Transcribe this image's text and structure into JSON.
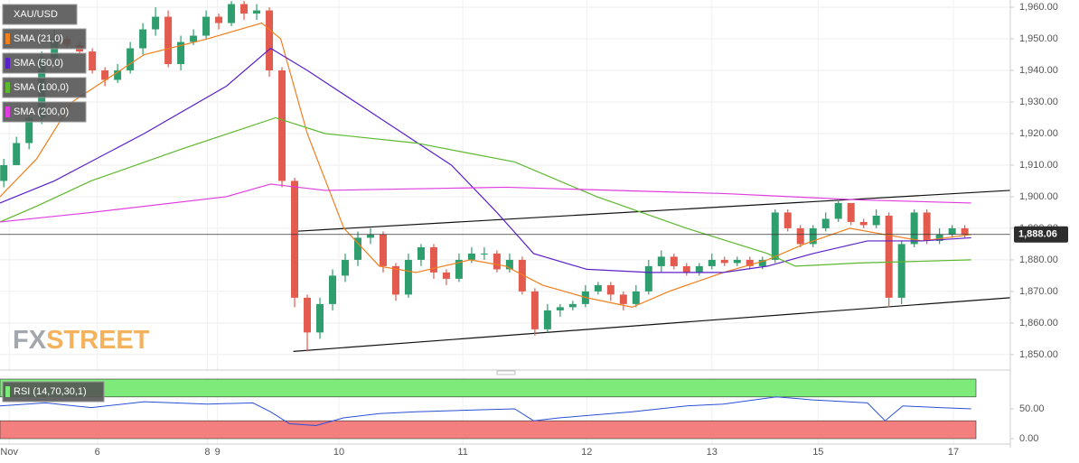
{
  "chart_data": {
    "type": "candlestick",
    "symbol": "XAU/USD",
    "up_color": "#2f9e6e",
    "down_color": "#e35b4f",
    "x": [
      0,
      1,
      2,
      3,
      4,
      5,
      6,
      7,
      8,
      9,
      10,
      11,
      12,
      13,
      14,
      15,
      16,
      17,
      18,
      19,
      20,
      21,
      22,
      23,
      24,
      25,
      26,
      27,
      28,
      29,
      30,
      31,
      32,
      33,
      34,
      35,
      36,
      37,
      38,
      39,
      40,
      41,
      42,
      43,
      44,
      45,
      46,
      47,
      48,
      49,
      50,
      51,
      52,
      53,
      54,
      55,
      56,
      57,
      58,
      59,
      60,
      61,
      62,
      63,
      64,
      65,
      66,
      67,
      68,
      69,
      70,
      71,
      72,
      73,
      74,
      75,
      76
    ],
    "open": [
      1905,
      1910,
      1917,
      1925,
      1944,
      1950,
      1948,
      1946,
      1940,
      1937,
      1940,
      1947,
      1953,
      1957,
      1942,
      1949,
      1951,
      1957,
      1955,
      1961,
      1958,
      1959,
      1940,
      1905,
      1868,
      1857,
      1866,
      1875,
      1880,
      1887,
      1888,
      1878,
      1869,
      1880,
      1884,
      1876,
      1874,
      1880,
      1882,
      1882,
      1877,
      1880,
      1870,
      1858,
      1864,
      1865,
      1866,
      1870,
      1872,
      1869,
      1866,
      1870,
      1878,
      1881,
      1878,
      1876,
      1878,
      1880,
      1879,
      1880,
      1878,
      1880,
      1895,
      1890,
      1885,
      1890,
      1893,
      1898,
      1892,
      1891,
      1894,
      1868,
      1885,
      1895,
      1886,
      1888,
      1890
    ],
    "high": [
      1912,
      1919,
      1927,
      1946,
      1953,
      1951,
      1949,
      1947,
      1941,
      1942,
      1949,
      1955,
      1960,
      1959,
      1951,
      1953,
      1959,
      1958,
      1962,
      1962,
      1961,
      1960,
      1941,
      1906,
      1869,
      1868,
      1877,
      1882,
      1889,
      1890,
      1889,
      1879,
      1882,
      1885,
      1885,
      1877,
      1882,
      1884,
      1884,
      1883,
      1882,
      1881,
      1871,
      1866,
      1866,
      1867,
      1872,
      1873,
      1873,
      1870,
      1872,
      1880,
      1883,
      1882,
      1879,
      1879,
      1882,
      1881,
      1881,
      1881,
      1881,
      1896,
      1896,
      1891,
      1891,
      1895,
      1899,
      1898,
      1893,
      1896,
      1895,
      1886,
      1896,
      1896,
      1890,
      1891,
      1891
    ],
    "low": [
      1903,
      1910,
      1915,
      1923,
      1942,
      1947,
      1945,
      1939,
      1935,
      1936,
      1939,
      1945,
      1951,
      1941,
      1940,
      1948,
      1950,
      1953,
      1954,
      1956,
      1956,
      1938,
      1903,
      1865,
      1851,
      1855,
      1864,
      1873,
      1878,
      1885,
      1876,
      1867,
      1868,
      1878,
      1874,
      1872,
      1873,
      1879,
      1880,
      1876,
      1876,
      1869,
      1856,
      1857,
      1862,
      1864,
      1865,
      1869,
      1867,
      1864,
      1865,
      1869,
      1876,
      1877,
      1875,
      1875,
      1877,
      1878,
      1878,
      1877,
      1877,
      1879,
      1889,
      1884,
      1884,
      1889,
      1892,
      1891,
      1890,
      1890,
      1865,
      1866,
      1884,
      1885,
      1885,
      1887,
      1887
    ],
    "close": [
      1910,
      1917,
      1925,
      1944,
      1950,
      1948,
      1946,
      1940,
      1937,
      1940,
      1947,
      1953,
      1957,
      1942,
      1949,
      1951,
      1957,
      1955,
      1961,
      1958,
      1959,
      1940,
      1905,
      1868,
      1857,
      1866,
      1875,
      1880,
      1887,
      1888,
      1878,
      1869,
      1880,
      1884,
      1876,
      1874,
      1880,
      1882,
      1882,
      1877,
      1880,
      1870,
      1858,
      1864,
      1865,
      1866,
      1870,
      1872,
      1869,
      1866,
      1870,
      1878,
      1881,
      1878,
      1876,
      1878,
      1880,
      1879,
      1880,
      1878,
      1880,
      1895,
      1890,
      1885,
      1890,
      1893,
      1898,
      1892,
      1891,
      1894,
      1868,
      1885,
      1895,
      1886,
      1888,
      1890,
      1888.06
    ],
    "series": [
      {
        "name": "SMA (21,0)",
        "color": "#f07f1e",
        "x": [
          -0.3,
          2.6,
          5.4,
          11.1,
          16.1,
          20.4,
          21.9,
          24,
          26.9,
          29.7,
          32.6,
          36.9,
          39.7,
          42.6,
          46.1,
          49.7,
          52.6,
          56.9,
          60.4,
          63.3,
          66.9,
          69.7,
          72.6,
          76.5
        ],
        "values": [
          1900,
          1912,
          1930,
          1945,
          1950,
          1955,
          1950,
          1920,
          1890,
          1878,
          1876,
          1880,
          1878,
          1872,
          1868,
          1865,
          1870,
          1876,
          1880,
          1885,
          1890,
          1888,
          1886,
          1888
        ]
      },
      {
        "name": "SMA (50,0)",
        "color": "#5b21c9",
        "x": [
          -0.3,
          4,
          11.1,
          17.6,
          21.1,
          24,
          29.7,
          35.4,
          39,
          41.9,
          46.1,
          51.1,
          56.9,
          60.4,
          64,
          68.3,
          72.6,
          76.5
        ],
        "values": [
          1898,
          1905,
          1920,
          1935,
          1947,
          1940,
          1925,
          1910,
          1895,
          1882,
          1877,
          1876,
          1876,
          1878,
          1882,
          1886,
          1886,
          1887
        ]
      },
      {
        "name": "SMA (100,0)",
        "color": "#5cb82e",
        "x": [
          -0.3,
          2.6,
          6.9,
          14,
          21.5,
          25.4,
          32.6,
          40.4,
          46.9,
          54,
          60.4,
          62.6,
          67.6,
          76.5
        ],
        "values": [
          1892,
          1897,
          1905,
          1915,
          1925,
          1920,
          1917,
          1911,
          1900,
          1890,
          1882,
          1878,
          1879,
          1880
        ]
      },
      {
        "name": "SMA (200,0)",
        "color": "#e03ce0",
        "x": [
          -0.3,
          6.9,
          17.6,
          21.1,
          25.4,
          39.7,
          56.9,
          67.6,
          76.5
        ],
        "values": [
          1892,
          1895,
          1900,
          1904,
          1902,
          1903,
          1901,
          1899,
          1898
        ]
      }
    ],
    "trendlines": [
      {
        "x": [
          22.9,
          79.6
        ],
        "values": [
          1889,
          1902
        ]
      },
      {
        "x": [
          22.9,
          79.6
        ],
        "values": [
          1851,
          1868
        ]
      }
    ],
    "last": 1888.06,
    "last_label": "1,888.06",
    "xlim": [
      -0.3,
      79.6
    ],
    "ylim": [
      1845.1,
      1962.3
    ],
    "xticks": [
      {
        "value": 0.43,
        "label": "Nov"
      },
      {
        "value": 7.4,
        "label": "6"
      },
      {
        "value": 16.1,
        "label": "8"
      },
      {
        "value": 16.9,
        "label": "9"
      },
      {
        "value": 26.5,
        "label": "10"
      },
      {
        "value": 36.3,
        "label": "11"
      },
      {
        "value": 46.1,
        "label": "12"
      },
      {
        "value": 56,
        "label": "13"
      },
      {
        "value": 64.4,
        "label": "15"
      },
      {
        "value": 75.1,
        "label": "17"
      }
    ],
    "yticks": [
      {
        "value": 1850,
        "label": "1,850.00"
      },
      {
        "value": 1860,
        "label": "1,860.00"
      },
      {
        "value": 1870,
        "label": "1,870.00"
      },
      {
        "value": 1880,
        "label": "1,880.00"
      },
      {
        "value": 1890,
        "label": "1,890.00"
      },
      {
        "value": 1900,
        "label": "1,900.00"
      },
      {
        "value": 1910,
        "label": "1,910.00"
      },
      {
        "value": 1920,
        "label": "1,920.00"
      },
      {
        "value": 1930,
        "label": "1,930.00"
      },
      {
        "value": 1940,
        "label": "1,940.00"
      },
      {
        "value": 1950,
        "label": "1,950.00"
      },
      {
        "value": 1960,
        "label": "1,960.00"
      }
    ],
    "grid": true,
    "watermark": [
      "FX",
      "STREET"
    ],
    "rsi": {
      "name": "RSI (14,70,30,1)",
      "color": "#2b4fd6",
      "upper": 70,
      "lower": 30,
      "upper_color": "#7dea7a",
      "lower_color": "#f47f7f",
      "ylim": [
        0,
        100
      ],
      "yticks": [
        {
          "value": 50,
          "label": "50.00"
        },
        {
          "value": 0,
          "label": "0.00"
        }
      ],
      "x": [
        -0.3,
        3.3,
        6.9,
        11.1,
        16.1,
        19.7,
        21.1,
        22.6,
        24.7,
        26.9,
        29.7,
        32.6,
        36.9,
        40.4,
        41.9,
        44,
        49.7,
        54,
        56.9,
        61.1,
        64,
        68.3,
        69.7,
        71.1,
        74,
        76.5
      ],
      "values": [
        55,
        60,
        52,
        62,
        58,
        60,
        45,
        25,
        22,
        35,
        42,
        45,
        48,
        50,
        30,
        35,
        45,
        55,
        58,
        70,
        65,
        60,
        30,
        55,
        52,
        50
      ]
    }
  }
}
